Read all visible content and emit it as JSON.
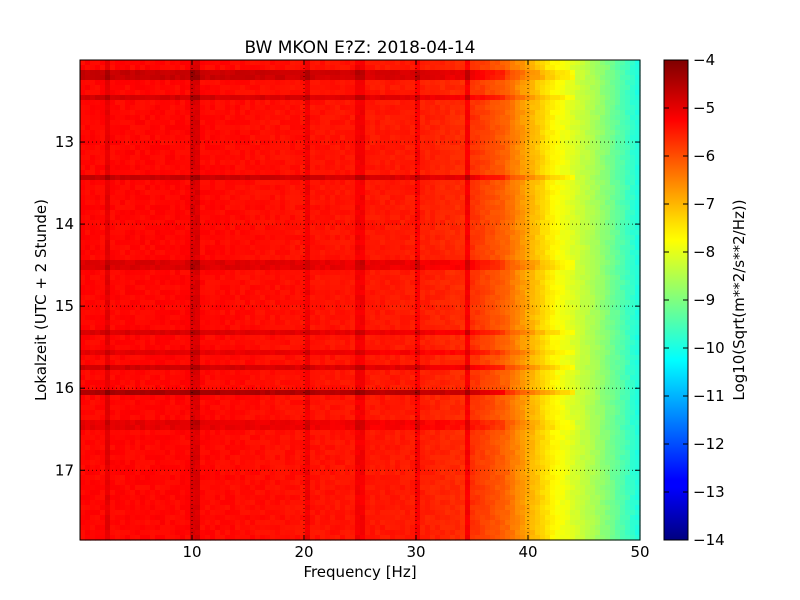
{
  "figure": {
    "title": "BW MKON E?Z: 2018-04-14"
  },
  "chart_data": {
    "type": "heatmap",
    "title": "BW MKON E?Z: 2018-04-14",
    "xlabel": "Frequency [Hz]",
    "ylabel": "Lokalzeit (UTC + 2 Stunde)",
    "xlim": [
      0,
      50
    ],
    "ylim": [
      17.85,
      12.0
    ],
    "y_axis_inverted": true,
    "x_ticks": [
      10,
      20,
      30,
      40,
      50
    ],
    "x_tick_labels": [
      "10",
      "20",
      "30",
      "40",
      "50"
    ],
    "y_ticks": [
      13,
      14,
      15,
      16,
      17
    ],
    "y_tick_labels": [
      "13",
      "14",
      "15",
      "16",
      "17"
    ],
    "grid": true,
    "grid_style": "dotted",
    "colormap": "jet",
    "colorbar": {
      "label": "Log10(Sqrt(m**2/s**2/Hz))",
      "range": [
        -14,
        -4
      ],
      "ticks": [
        -4,
        -5,
        -6,
        -7,
        -8,
        -9,
        -10,
        -11,
        -12,
        -13,
        -14
      ],
      "tick_labels": [
        "−4",
        "−5",
        "−6",
        "−7",
        "−8",
        "−9",
        "−10",
        "−11",
        "−12",
        "−13",
        "−14"
      ]
    },
    "frequency_profile": {
      "freq_hz": [
        0,
        5,
        10,
        20,
        30,
        35,
        38,
        40,
        42,
        44,
        46,
        48,
        50
      ],
      "log10_amplitude": [
        -5.3,
        -5.3,
        -5.3,
        -5.4,
        -5.5,
        -5.7,
        -6.2,
        -6.9,
        -7.6,
        -8.1,
        -8.6,
        -9.3,
        -10.0
      ]
    },
    "horizontal_bands": [
      {
        "time": 12.18,
        "delta": 0.6
      },
      {
        "time": 12.45,
        "delta": 0.5
      },
      {
        "time": 13.45,
        "delta": 0.6
      },
      {
        "time": 14.5,
        "delta": 0.4
      },
      {
        "time": 15.33,
        "delta": 0.4
      },
      {
        "time": 15.55,
        "delta": 0.3
      },
      {
        "time": 15.73,
        "delta": 0.5
      },
      {
        "time": 16.03,
        "delta": 0.9
      },
      {
        "time": 16.45,
        "delta": 0.3
      }
    ],
    "vertical_bands": [
      {
        "freq": 2.5,
        "delta": 0.3
      },
      {
        "freq": 10.2,
        "delta": 0.4
      },
      {
        "freq": 20.3,
        "delta": 0.3
      },
      {
        "freq": 25.0,
        "delta": 0.3
      },
      {
        "freq": 30.2,
        "delta": 0.3
      },
      {
        "freq": 34.6,
        "delta": 0.5
      }
    ]
  }
}
